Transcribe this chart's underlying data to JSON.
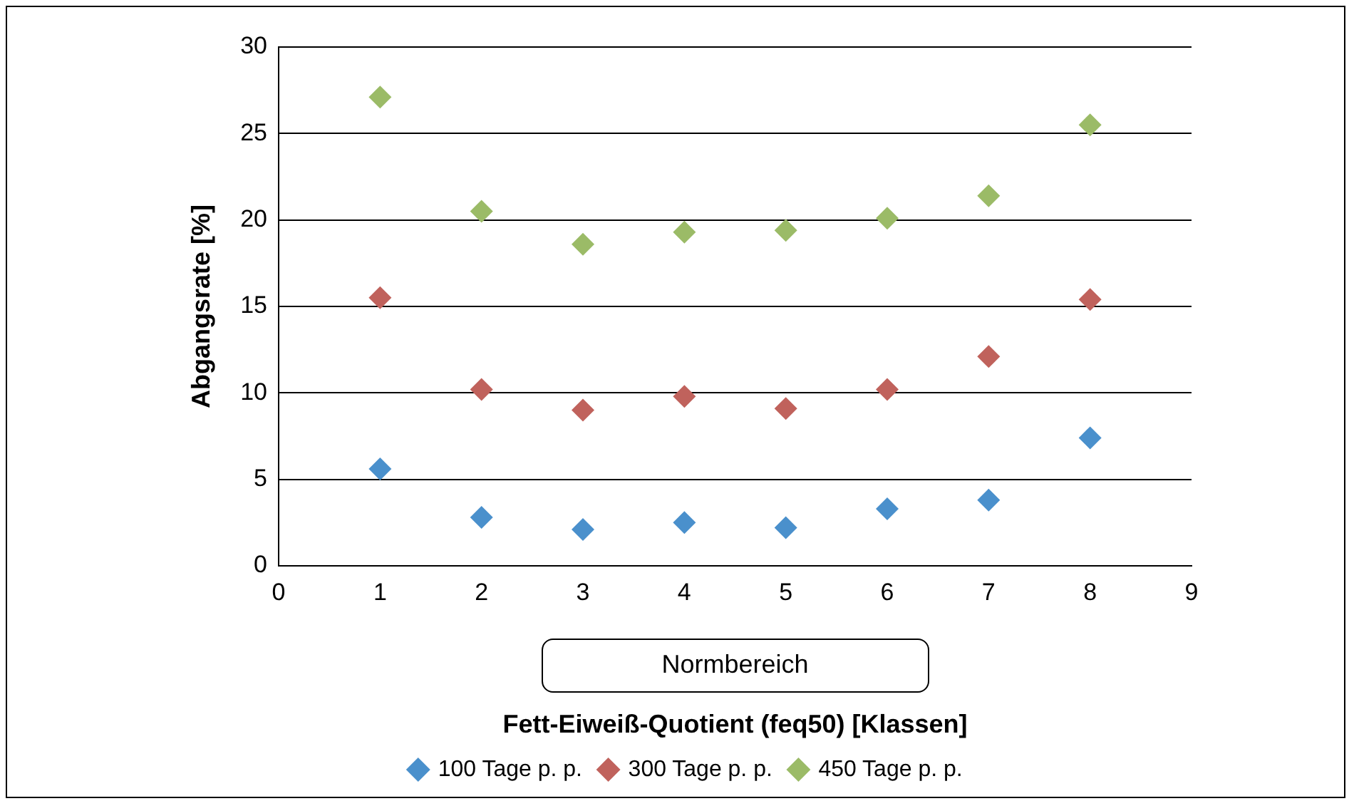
{
  "chart_data": {
    "type": "scatter",
    "xlabel": "Fett-Eiweiß-Quotient (feq50) [Klassen]",
    "ylabel": "Abgangsrate [%]",
    "annotations": [
      "Normbereich"
    ],
    "x": [
      1,
      2,
      3,
      4,
      5,
      6,
      7,
      8
    ],
    "series": [
      {
        "name": "100 Tage p. p.",
        "color": "#4a90cc",
        "values": [
          5.6,
          2.8,
          2.1,
          2.5,
          2.2,
          3.3,
          3.8,
          7.4
        ]
      },
      {
        "name": "300 Tage p. p.",
        "color": "#c0625c",
        "values": [
          15.5,
          10.2,
          9.0,
          9.8,
          9.1,
          10.2,
          12.1,
          15.4
        ]
      },
      {
        "name": "450 Tage p. p.",
        "color": "#9bbb67",
        "values": [
          27.1,
          20.5,
          18.6,
          19.3,
          19.4,
          20.1,
          21.4,
          25.5
        ]
      }
    ],
    "xlim": [
      0,
      9
    ],
    "xticks": [
      0,
      1,
      2,
      3,
      4,
      5,
      6,
      7,
      8,
      9
    ],
    "ylim": [
      0,
      30
    ],
    "yticks": [
      0,
      5,
      10,
      15,
      20,
      25,
      30
    ],
    "grid": "y",
    "legend": "bottom",
    "marker": "diamond"
  }
}
